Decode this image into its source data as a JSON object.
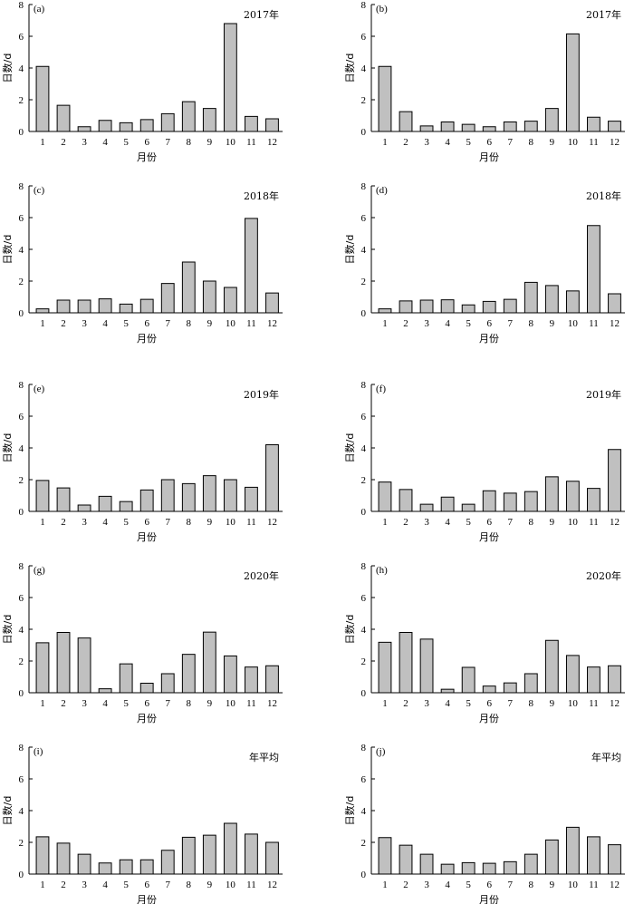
{
  "chart_data": [
    {
      "type": "bar",
      "panel": "(a)",
      "title": "2017年",
      "xlabel": "月份",
      "ylabel": "日数/d",
      "ylim": [
        0,
        8
      ],
      "yticks": [
        "0",
        "2",
        "4",
        "6",
        "8"
      ],
      "categories": [
        "1",
        "2",
        "3",
        "4",
        "5",
        "6",
        "7",
        "8",
        "9",
        "10",
        "11",
        "12"
      ],
      "values": [
        4.1,
        1.65,
        0.3,
        0.7,
        0.55,
        0.75,
        1.12,
        1.88,
        1.45,
        6.8,
        0.95,
        0.8
      ]
    },
    {
      "type": "bar",
      "panel": "(b)",
      "title": "2017年",
      "xlabel": "月份",
      "ylabel": "日数/d",
      "ylim": [
        0,
        8
      ],
      "yticks": [
        "0",
        "2",
        "4",
        "6",
        "8"
      ],
      "categories": [
        "1",
        "2",
        "3",
        "4",
        "5",
        "6",
        "7",
        "8",
        "9",
        "10",
        "11",
        "12"
      ],
      "values": [
        4.1,
        1.25,
        0.35,
        0.6,
        0.45,
        0.3,
        0.6,
        0.65,
        1.45,
        6.15,
        0.9,
        0.65
      ]
    },
    {
      "type": "bar",
      "panel": "(c)",
      "title": "2018年",
      "xlabel": "月份",
      "ylabel": "日数/d",
      "ylim": [
        0,
        8
      ],
      "yticks": [
        "0",
        "2",
        "4",
        "6",
        "8"
      ],
      "categories": [
        "1",
        "2",
        "3",
        "4",
        "5",
        "6",
        "7",
        "8",
        "9",
        "10",
        "11",
        "12"
      ],
      "values": [
        0.25,
        0.8,
        0.8,
        0.88,
        0.55,
        0.85,
        1.85,
        3.2,
        2.0,
        1.6,
        5.95,
        1.25
      ]
    },
    {
      "type": "bar",
      "panel": "(d)",
      "title": "2018年",
      "xlabel": "月份",
      "ylabel": "日数/d",
      "ylim": [
        0,
        8
      ],
      "yticks": [
        "0",
        "2",
        "4",
        "6",
        "8"
      ],
      "categories": [
        "1",
        "2",
        "3",
        "4",
        "5",
        "6",
        "7",
        "8",
        "9",
        "10",
        "11",
        "12"
      ],
      "values": [
        0.25,
        0.75,
        0.8,
        0.82,
        0.5,
        0.72,
        0.85,
        1.92,
        1.72,
        1.38,
        5.5,
        1.2
      ]
    },
    {
      "type": "bar",
      "panel": "(e)",
      "title": "2019年",
      "xlabel": "月份",
      "ylabel": "日数/d",
      "ylim": [
        0,
        8
      ],
      "yticks": [
        "0",
        "2",
        "4",
        "6",
        "8"
      ],
      "categories": [
        "1",
        "2",
        "3",
        "4",
        "5",
        "6",
        "7",
        "8",
        "9",
        "10",
        "11",
        "12"
      ],
      "values": [
        1.95,
        1.48,
        0.4,
        0.95,
        0.62,
        1.35,
        2.0,
        1.75,
        2.25,
        2.0,
        1.52,
        4.2
      ]
    },
    {
      "type": "bar",
      "panel": "(f)",
      "title": "2019年",
      "xlabel": "月份",
      "ylabel": "日数/d",
      "ylim": [
        0,
        8
      ],
      "yticks": [
        "0",
        "2",
        "4",
        "6",
        "8"
      ],
      "categories": [
        "1",
        "2",
        "3",
        "4",
        "5",
        "6",
        "7",
        "8",
        "9",
        "10",
        "11",
        "12"
      ],
      "values": [
        1.85,
        1.38,
        0.45,
        0.9,
        0.45,
        1.3,
        1.15,
        1.25,
        2.18,
        1.9,
        1.45,
        3.9
      ]
    },
    {
      "type": "bar",
      "panel": "(g)",
      "title": "2020年",
      "xlabel": "月份",
      "ylabel": "日数/d",
      "ylim": [
        0,
        8
      ],
      "yticks": [
        "0",
        "2",
        "4",
        "6",
        "8"
      ],
      "categories": [
        "1",
        "2",
        "3",
        "4",
        "5",
        "6",
        "7",
        "8",
        "9",
        "10",
        "11",
        "12"
      ],
      "values": [
        3.15,
        3.8,
        3.45,
        0.25,
        1.82,
        0.6,
        1.2,
        2.42,
        3.82,
        2.32,
        1.62,
        1.7
      ]
    },
    {
      "type": "bar",
      "panel": "(h)",
      "title": "2020年",
      "xlabel": "月份",
      "ylabel": "日数/d",
      "ylim": [
        0,
        8
      ],
      "yticks": [
        "0",
        "2",
        "4",
        "6",
        "8"
      ],
      "categories": [
        "1",
        "2",
        "3",
        "4",
        "5",
        "6",
        "7",
        "8",
        "9",
        "10",
        "11",
        "12"
      ],
      "values": [
        3.18,
        3.8,
        3.38,
        0.22,
        1.6,
        0.42,
        0.62,
        1.2,
        3.3,
        2.35,
        1.62,
        1.7
      ]
    },
    {
      "type": "bar",
      "panel": "(i)",
      "title": "年平均",
      "xlabel": "月份",
      "ylabel": "日数/d",
      "ylim": [
        0,
        8
      ],
      "yticks": [
        "0",
        "2",
        "4",
        "6",
        "8"
      ],
      "categories": [
        "1",
        "2",
        "3",
        "4",
        "5",
        "6",
        "7",
        "8",
        "9",
        "10",
        "11",
        "12"
      ],
      "values": [
        2.35,
        1.95,
        1.25,
        0.7,
        0.9,
        0.9,
        1.5,
        2.32,
        2.45,
        3.2,
        2.52,
        2.0
      ]
    },
    {
      "type": "bar",
      "panel": "(j)",
      "title": "年平均",
      "xlabel": "月份",
      "ylabel": "日数/d",
      "ylim": [
        0,
        8
      ],
      "yticks": [
        "0",
        "2",
        "4",
        "6",
        "8"
      ],
      "categories": [
        "1",
        "2",
        "3",
        "4",
        "5",
        "6",
        "7",
        "8",
        "9",
        "10",
        "11",
        "12"
      ],
      "values": [
        2.3,
        1.82,
        1.25,
        0.62,
        0.72,
        0.68,
        0.78,
        1.25,
        2.15,
        2.95,
        2.35,
        1.85
      ]
    }
  ],
  "colors": {
    "bar_fill": "#c0c0c0",
    "bar_stroke": "#000000",
    "axis": "#000000"
  }
}
